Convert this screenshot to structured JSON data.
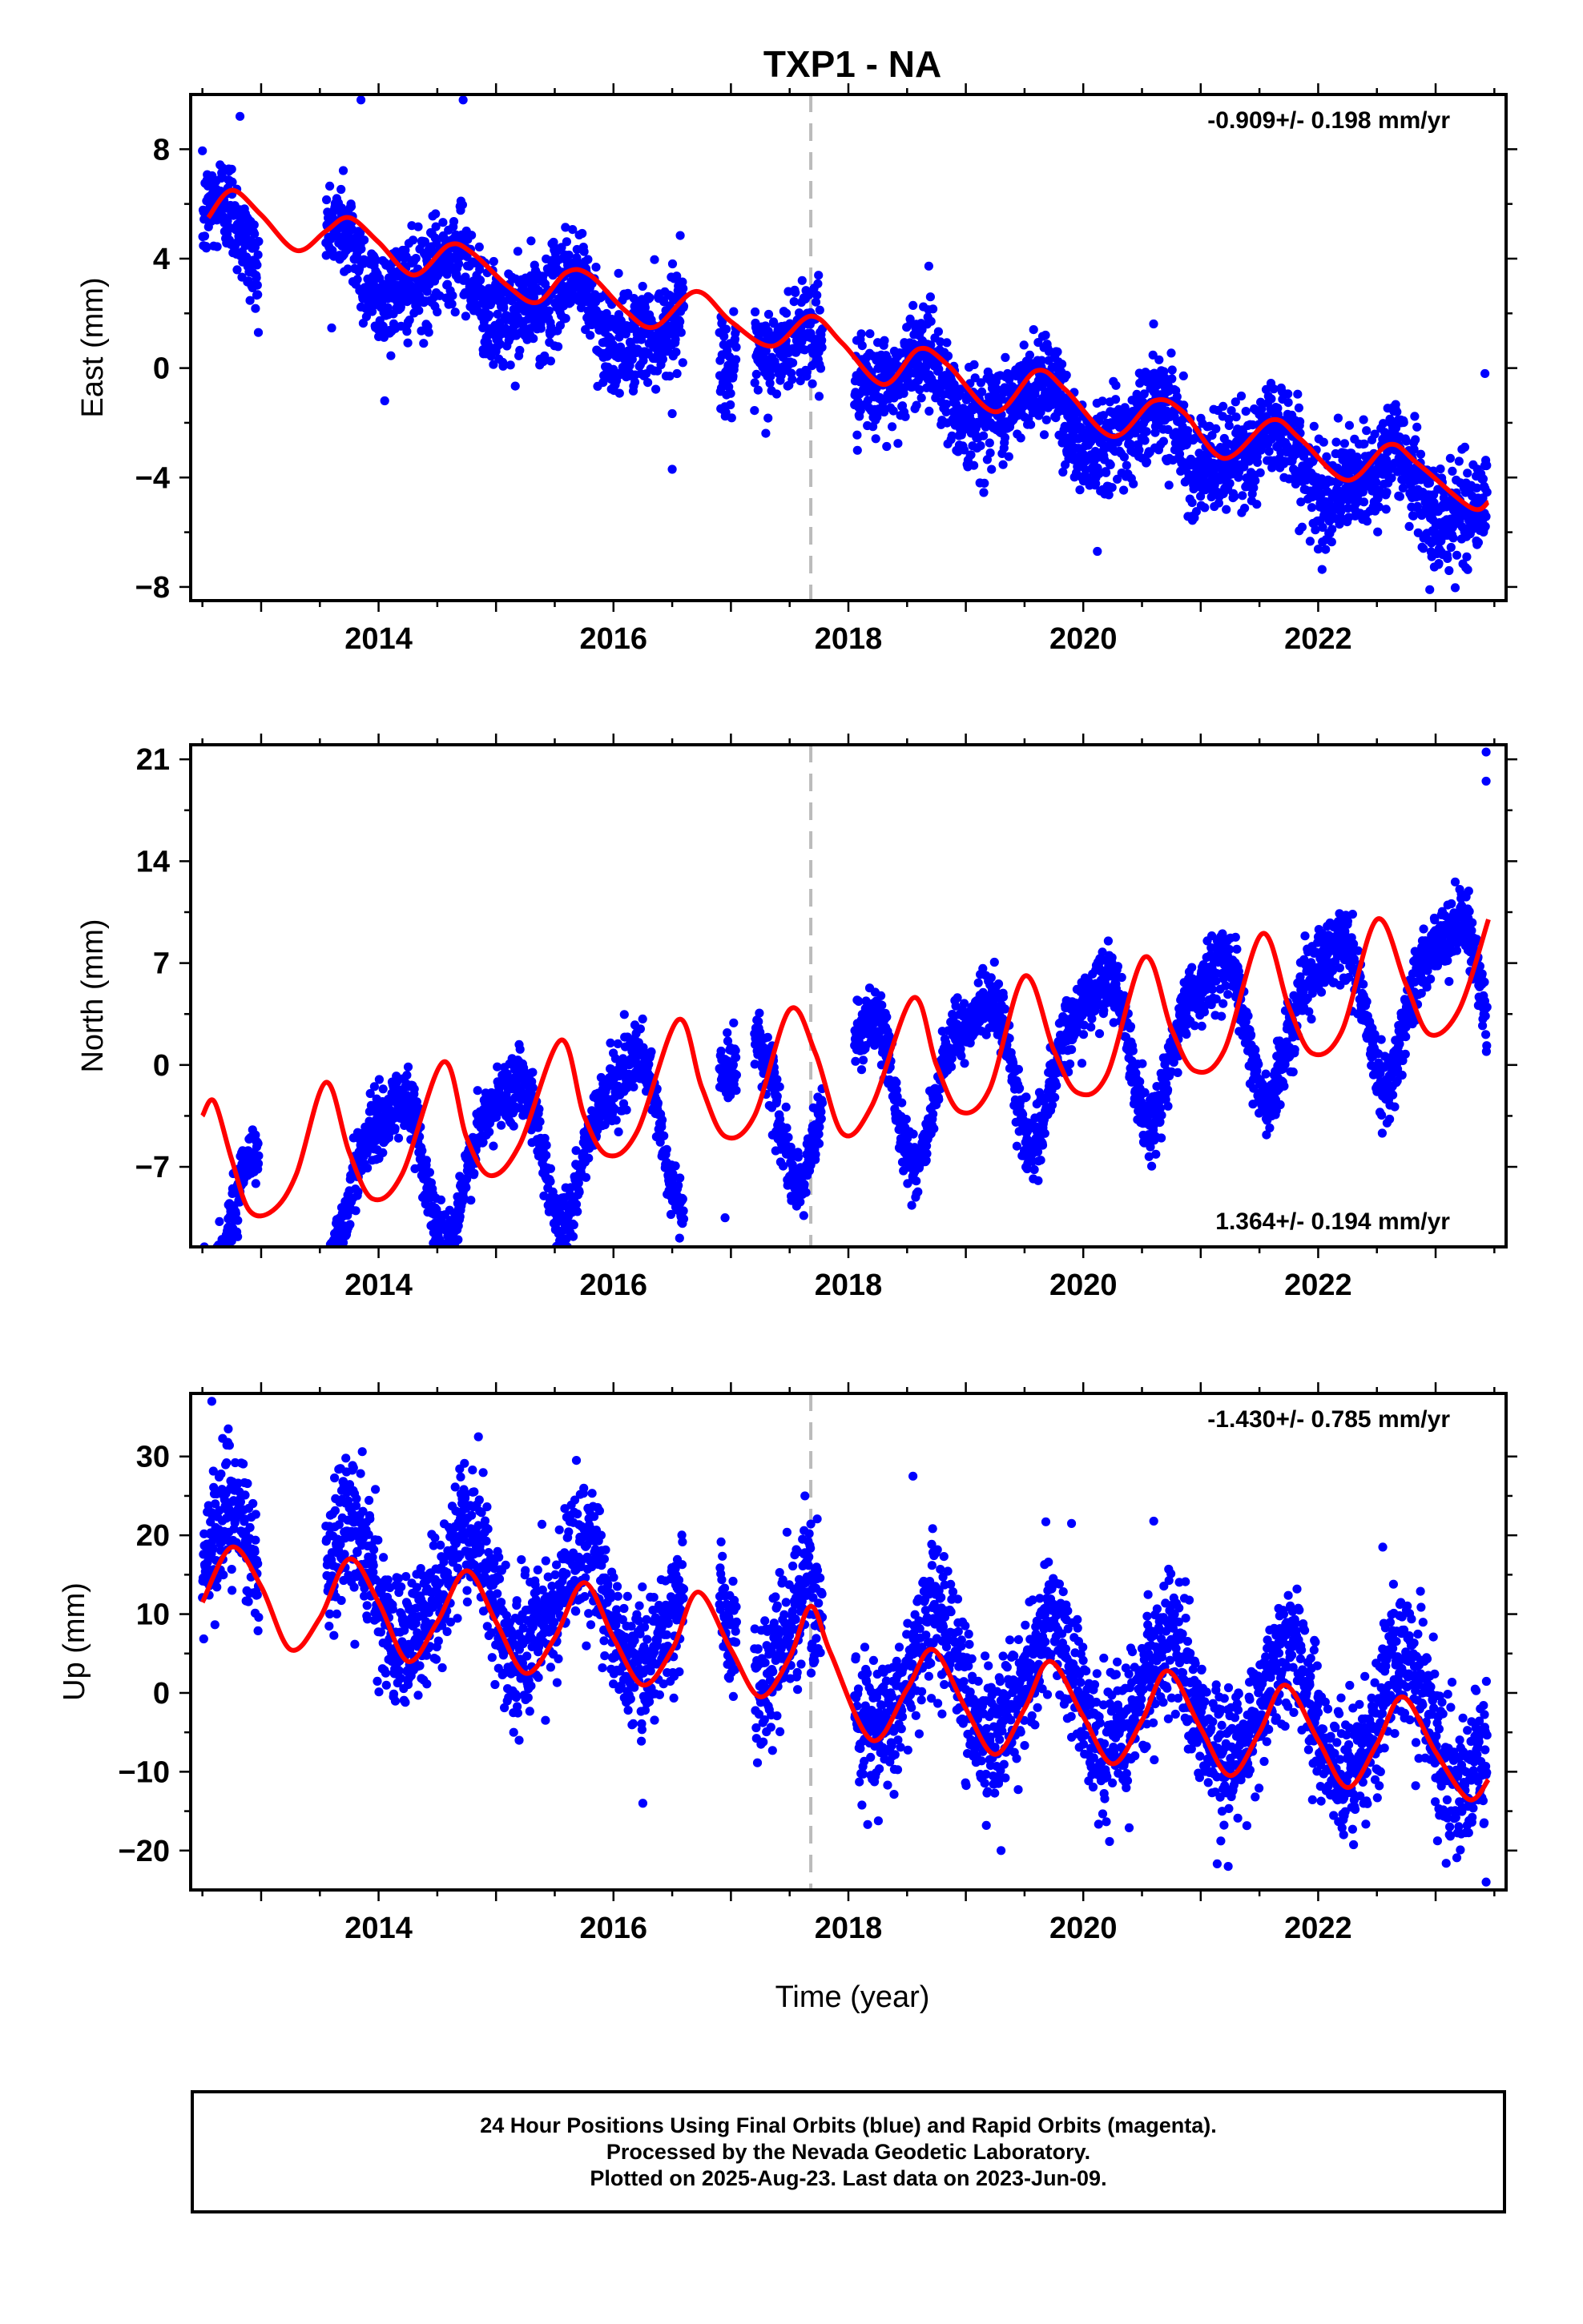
{
  "figure": {
    "title": "TXP1 - NA",
    "xlabel": "Time (year)",
    "colors": {
      "final_orbits": "#0000ff",
      "model_fit": "#ff0000",
      "event_line": "#bbbbbb"
    }
  },
  "caption": {
    "line1": "24 Hour Positions Using Final Orbits (blue) and Rapid Orbits (magenta).",
    "line2": "Processed by the Nevada Geodetic Laboratory.",
    "line3": "Plotted on 2025-Aug-23. Last data on 2023-Jun-09."
  },
  "chart_data": [
    {
      "type": "scatter",
      "panel": "east",
      "ylabel": "East (mm)",
      "rate_label": "-0.909+/- 0.198 mm/yr",
      "rate_position": "top-right",
      "xlim": [
        2012.4,
        2023.6
      ],
      "ylim": [
        -8.5,
        10
      ],
      "x_ticks": [
        2014,
        2016,
        2018,
        2020,
        2022
      ],
      "y_ticks": [
        -8,
        -4,
        0,
        4,
        8
      ],
      "event_line_x": 2017.68,
      "data_span": [
        2012.5,
        2023.44
      ],
      "model": {
        "rate": -0.909,
        "intercept_2018": 0.0,
        "annual_amp": 1.0,
        "annual_phase": 0.62,
        "semiannual_amp": 0.35,
        "semiannual_phase": 0.2,
        "offset_after_event": 0.0
      },
      "noise_sd": 0.9,
      "outliers": [
        {
          "x": 2012.82,
          "y": 9.2
        },
        {
          "x": 2013.85,
          "y": 9.8
        },
        {
          "x": 2014.72,
          "y": 9.8
        },
        {
          "x": 2016.5,
          "y": -3.7
        },
        {
          "x": 2020.12,
          "y": -6.7
        },
        {
          "x": 2022.95,
          "y": -8.1
        },
        {
          "x": 2023.42,
          "y": -0.2
        }
      ],
      "fit_line": [
        {
          "x": 2012.55,
          "y": 5.5
        },
        {
          "x": 2012.75,
          "y": 6.5
        },
        {
          "x": 2013.0,
          "y": 5.6
        },
        {
          "x": 2013.3,
          "y": 4.3
        },
        {
          "x": 2013.55,
          "y": 5.0
        },
        {
          "x": 2013.75,
          "y": 5.5
        },
        {
          "x": 2014.0,
          "y": 4.6
        },
        {
          "x": 2014.3,
          "y": 3.4
        },
        {
          "x": 2014.6,
          "y": 4.5
        },
        {
          "x": 2014.8,
          "y": 4.2
        },
        {
          "x": 2015.1,
          "y": 3.0
        },
        {
          "x": 2015.35,
          "y": 2.4
        },
        {
          "x": 2015.6,
          "y": 3.5
        },
        {
          "x": 2015.8,
          "y": 3.4
        },
        {
          "x": 2016.1,
          "y": 2.1
        },
        {
          "x": 2016.35,
          "y": 1.5
        },
        {
          "x": 2016.7,
          "y": 2.8
        },
        {
          "x": 2017.0,
          "y": 1.7
        },
        {
          "x": 2017.35,
          "y": 0.8
        },
        {
          "x": 2017.68,
          "y": 1.9
        },
        {
          "x": 2017.95,
          "y": 0.9
        },
        {
          "x": 2018.3,
          "y": -0.6
        },
        {
          "x": 2018.6,
          "y": 0.7
        },
        {
          "x": 2018.85,
          "y": 0.1
        },
        {
          "x": 2019.25,
          "y": -1.6
        },
        {
          "x": 2019.6,
          "y": -0.1
        },
        {
          "x": 2019.85,
          "y": -0.8
        },
        {
          "x": 2020.25,
          "y": -2.5
        },
        {
          "x": 2020.6,
          "y": -1.2
        },
        {
          "x": 2020.85,
          "y": -1.6
        },
        {
          "x": 2021.2,
          "y": -3.3
        },
        {
          "x": 2021.6,
          "y": -1.9
        },
        {
          "x": 2021.85,
          "y": -2.6
        },
        {
          "x": 2022.25,
          "y": -4.1
        },
        {
          "x": 2022.6,
          "y": -2.8
        },
        {
          "x": 2022.85,
          "y": -3.5
        },
        {
          "x": 2023.3,
          "y": -5.1
        },
        {
          "x": 2023.45,
          "y": -4.9
        }
      ]
    },
    {
      "type": "scatter",
      "panel": "north",
      "ylabel": "North (mm)",
      "rate_label": "1.364+/- 0.194 mm/yr",
      "rate_position": "bottom-right",
      "xlim": [
        2012.4,
        2023.6
      ],
      "ylim": [
        -12.5,
        22
      ],
      "x_ticks": [
        2014,
        2016,
        2018,
        2020,
        2022
      ],
      "y_ticks": [
        -7,
        0,
        7,
        14,
        21
      ],
      "event_line_x": 2017.68,
      "data_span": [
        2012.5,
        2023.44
      ],
      "model": {
        "rate": 1.364,
        "intercept_2018": -1.5,
        "annual_amp": 4.8,
        "annual_phase": 0.1,
        "semiannual_amp": 1.4,
        "semiannual_phase": 0.8,
        "offset_after_event": 0.0
      },
      "noise_sd": 1.1,
      "outliers": [
        {
          "x": 2023.43,
          "y": 21.5
        },
        {
          "x": 2023.43,
          "y": 19.5
        },
        {
          "x": 2016.95,
          "y": -10.5
        },
        {
          "x": 2012.8,
          "y": -11.8
        }
      ],
      "fit_line": [
        {
          "x": 2012.5,
          "y": -3.5
        },
        {
          "x": 2012.6,
          "y": -2.5
        },
        {
          "x": 2012.75,
          "y": -6.5
        },
        {
          "x": 2012.9,
          "y": -10.0
        },
        {
          "x": 2013.1,
          "y": -10.0
        },
        {
          "x": 2013.3,
          "y": -7.5
        },
        {
          "x": 2013.55,
          "y": -1.2
        },
        {
          "x": 2013.75,
          "y": -6.0
        },
        {
          "x": 2013.95,
          "y": -9.2
        },
        {
          "x": 2014.2,
          "y": -7.5
        },
        {
          "x": 2014.55,
          "y": 0.2
        },
        {
          "x": 2014.75,
          "y": -5.0
        },
        {
          "x": 2014.95,
          "y": -7.6
        },
        {
          "x": 2015.2,
          "y": -5.5
        },
        {
          "x": 2015.55,
          "y": 1.7
        },
        {
          "x": 2015.75,
          "y": -3.5
        },
        {
          "x": 2015.95,
          "y": -6.2
        },
        {
          "x": 2016.2,
          "y": -4.6
        },
        {
          "x": 2016.55,
          "y": 3.1
        },
        {
          "x": 2016.75,
          "y": -1.5
        },
        {
          "x": 2016.95,
          "y": -4.9
        },
        {
          "x": 2017.2,
          "y": -3.5
        },
        {
          "x": 2017.5,
          "y": 3.8
        },
        {
          "x": 2017.72,
          "y": 0.8
        },
        {
          "x": 2017.95,
          "y": -4.7
        },
        {
          "x": 2018.2,
          "y": -2.8
        },
        {
          "x": 2018.55,
          "y": 4.6
        },
        {
          "x": 2018.75,
          "y": 0.0
        },
        {
          "x": 2018.95,
          "y": -3.2
        },
        {
          "x": 2019.2,
          "y": -1.7
        },
        {
          "x": 2019.5,
          "y": 6.1
        },
        {
          "x": 2019.75,
          "y": 1.0
        },
        {
          "x": 2019.95,
          "y": -1.9
        },
        {
          "x": 2020.2,
          "y": -0.7
        },
        {
          "x": 2020.52,
          "y": 7.4
        },
        {
          "x": 2020.75,
          "y": 2.5
        },
        {
          "x": 2020.95,
          "y": -0.4
        },
        {
          "x": 2021.2,
          "y": 1.0
        },
        {
          "x": 2021.52,
          "y": 9.0
        },
        {
          "x": 2021.75,
          "y": 4.0
        },
        {
          "x": 2021.95,
          "y": 0.8
        },
        {
          "x": 2022.2,
          "y": 2.3
        },
        {
          "x": 2022.5,
          "y": 10.0
        },
        {
          "x": 2022.75,
          "y": 5.5
        },
        {
          "x": 2022.95,
          "y": 2.1
        },
        {
          "x": 2023.2,
          "y": 3.8
        },
        {
          "x": 2023.45,
          "y": 10.0
        }
      ]
    },
    {
      "type": "scatter",
      "panel": "up",
      "ylabel": "Up (mm)",
      "rate_label": "-1.430+/- 0.785 mm/yr",
      "rate_position": "top-right",
      "xlim": [
        2012.4,
        2023.6
      ],
      "ylim": [
        -25,
        38
      ],
      "x_ticks": [
        2014,
        2016,
        2018,
        2020,
        2022
      ],
      "y_ticks": [
        -20,
        -10,
        0,
        10,
        20,
        30
      ],
      "event_line_x": 2017.68,
      "data_span": [
        2012.5,
        2023.44
      ],
      "model": {
        "rate": -1.43,
        "intercept_2018": 3.0,
        "annual_amp": 7.5,
        "annual_phase": 0.73,
        "semiannual_amp": 1.0,
        "semiannual_phase": 0.3,
        "offset_after_event": -4.5
      },
      "noise_sd": 4.2,
      "outliers": [
        {
          "x": 2012.58,
          "y": 37.0
        },
        {
          "x": 2012.72,
          "y": 33.5
        },
        {
          "x": 2014.85,
          "y": 32.5
        },
        {
          "x": 2016.25,
          "y": -14.0
        },
        {
          "x": 2017.63,
          "y": 25.0
        },
        {
          "x": 2018.55,
          "y": 27.5
        },
        {
          "x": 2019.9,
          "y": 21.5
        },
        {
          "x": 2020.6,
          "y": 21.8
        },
        {
          "x": 2022.55,
          "y": 18.5
        },
        {
          "x": 2023.43,
          "y": -24.0
        },
        {
          "x": 2019.3,
          "y": -20.0
        }
      ],
      "fit_line": [
        {
          "x": 2012.5,
          "y": 11.5
        },
        {
          "x": 2012.75,
          "y": 18.5
        },
        {
          "x": 2013.0,
          "y": 13.5
        },
        {
          "x": 2013.25,
          "y": 5.5
        },
        {
          "x": 2013.5,
          "y": 9.5
        },
        {
          "x": 2013.75,
          "y": 17.0
        },
        {
          "x": 2014.0,
          "y": 11.5
        },
        {
          "x": 2014.25,
          "y": 4.0
        },
        {
          "x": 2014.5,
          "y": 9.0
        },
        {
          "x": 2014.75,
          "y": 15.5
        },
        {
          "x": 2015.0,
          "y": 9.0
        },
        {
          "x": 2015.25,
          "y": 2.5
        },
        {
          "x": 2015.5,
          "y": 7.0
        },
        {
          "x": 2015.75,
          "y": 14.0
        },
        {
          "x": 2016.0,
          "y": 7.0
        },
        {
          "x": 2016.25,
          "y": 1.0
        },
        {
          "x": 2016.5,
          "y": 5.5
        },
        {
          "x": 2016.72,
          "y": 12.8
        },
        {
          "x": 2017.0,
          "y": 5.5
        },
        {
          "x": 2017.25,
          "y": -0.5
        },
        {
          "x": 2017.5,
          "y": 4.5
        },
        {
          "x": 2017.68,
          "y": 11.0
        },
        {
          "x": 2017.85,
          "y": 5.0
        },
        {
          "x": 2018.2,
          "y": -6.0
        },
        {
          "x": 2018.5,
          "y": 0.5
        },
        {
          "x": 2018.72,
          "y": 5.5
        },
        {
          "x": 2019.0,
          "y": -2.0
        },
        {
          "x": 2019.25,
          "y": -7.8
        },
        {
          "x": 2019.5,
          "y": -2.0
        },
        {
          "x": 2019.72,
          "y": 4.0
        },
        {
          "x": 2020.0,
          "y": -3.0
        },
        {
          "x": 2020.25,
          "y": -9.0
        },
        {
          "x": 2020.5,
          "y": -3.5
        },
        {
          "x": 2020.72,
          "y": 2.8
        },
        {
          "x": 2021.0,
          "y": -4.5
        },
        {
          "x": 2021.25,
          "y": -10.5
        },
        {
          "x": 2021.5,
          "y": -5.0
        },
        {
          "x": 2021.72,
          "y": 1.0
        },
        {
          "x": 2022.0,
          "y": -6.0
        },
        {
          "x": 2022.25,
          "y": -12.0
        },
        {
          "x": 2022.5,
          "y": -6.5
        },
        {
          "x": 2022.72,
          "y": -0.5
        },
        {
          "x": 2023.0,
          "y": -7.5
        },
        {
          "x": 2023.28,
          "y": -13.5
        },
        {
          "x": 2023.45,
          "y": -11.0
        }
      ]
    }
  ]
}
